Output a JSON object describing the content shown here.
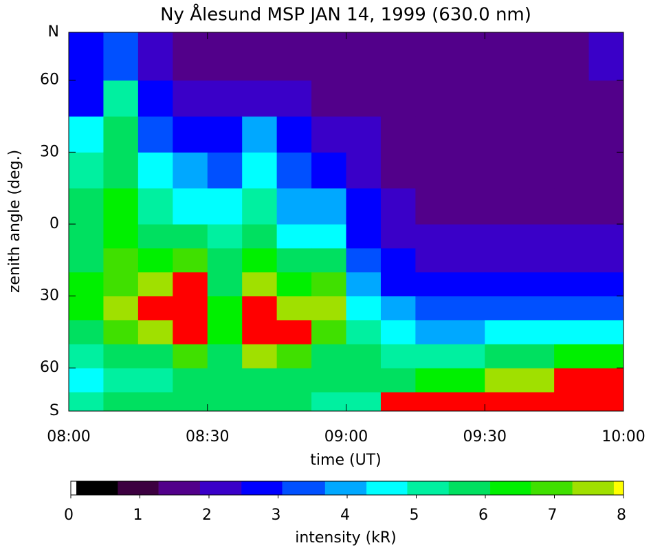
{
  "chart_data": {
    "type": "heatmap",
    "title": "Ny Ålesund MSP JAN 14, 1999 (630.0 nm)",
    "xlabel": "time (UT)",
    "ylabel": "zenith angle (deg.)",
    "xlim": [
      8,
      10
    ],
    "xticks": [
      {
        "value": 8,
        "label": "08:00"
      },
      {
        "value": 8.5,
        "label": "08:30"
      },
      {
        "value": 9,
        "label": "09:00"
      },
      {
        "value": 9.5,
        "label": "09:30"
      },
      {
        "value": 10,
        "label": "10:00"
      }
    ],
    "ylim": [
      -78,
      80
    ],
    "yticks": [
      {
        "value": 80,
        "label": "N"
      },
      {
        "value": 60,
        "label": "60"
      },
      {
        "value": 30,
        "label": "30"
      },
      {
        "value": 0,
        "label": "0"
      },
      {
        "value": -30,
        "label": "30"
      },
      {
        "value": -60,
        "label": "60"
      },
      {
        "value": -78,
        "label": "S"
      }
    ],
    "x_edges": [
      8,
      8.125,
      8.25,
      8.375,
      8.5,
      8.625,
      8.75,
      8.875,
      9,
      9.125,
      9.25,
      9.375,
      9.5,
      9.625,
      9.75,
      9.875,
      10
    ],
    "y_edges": [
      -78,
      -70,
      -60,
      -50,
      -40,
      -30,
      -20,
      -10,
      0,
      15,
      30,
      45,
      60,
      80
    ],
    "z": [
      [
        5,
        4.5,
        5,
        6,
        6.5,
        6.5,
        6,
        6,
        5.5,
        5,
        4.5,
        3,
        2.5
      ],
      [
        5.5,
        5,
        5.5,
        7,
        7.5,
        7,
        7,
        6.5,
        6.5,
        6,
        6,
        5,
        3.5
      ],
      [
        5.5,
        5,
        6,
        7.5,
        8,
        7.5,
        6.5,
        5.5,
        5,
        4.5,
        3.5,
        2.5,
        2
      ],
      [
        5.5,
        5.5,
        7,
        8.5,
        8.5,
        8.2,
        7,
        5.5,
        4.5,
        3.8,
        3,
        2.2,
        1.8
      ],
      [
        5.5,
        5.5,
        6,
        6.5,
        6.5,
        6,
        5.5,
        5,
        4.5,
        3.5,
        2.8,
        2,
        1.8
      ],
      [
        5.5,
        6,
        7.5,
        8.5,
        8.2,
        7.5,
        6.5,
        5.5,
        5,
        4.5,
        3.8,
        2.2,
        1.8
      ],
      [
        5.5,
        6,
        7,
        8.5,
        7.5,
        6.5,
        5.5,
        4.8,
        4,
        3.2,
        2.5,
        1.9,
        1.6
      ],
      [
        5,
        5.5,
        6,
        7,
        7.5,
        7,
        6,
        4.8,
        4,
        3,
        2.2,
        1.8,
        1.6
      ],
      [
        5,
        5.5,
        5.5,
        5.2,
        4.8,
        4,
        3.5,
        3,
        2.6,
        2.2,
        1.9,
        1.7,
        1.6
      ],
      [
        8.5,
        6,
        5,
        4.5,
        3.8,
        3,
        2.5,
        2.2,
        2,
        1.8,
        1.7,
        1.6,
        1.6
      ],
      [
        8.5,
        6.5,
        5,
        4.2,
        3.5,
        2.8,
        2.3,
        2,
        1.8,
        1.7,
        1.6,
        1.6,
        1.6
      ],
      [
        8.5,
        6.5,
        5.2,
        4.2,
        3.5,
        2.8,
        2.2,
        1.9,
        1.7,
        1.6,
        1.6,
        1.6,
        1.6
      ],
      [
        8.5,
        7.5,
        5.5,
        4.3,
        3.5,
        2.8,
        2.2,
        1.9,
        1.7,
        1.6,
        1.6,
        1.6,
        1.6
      ],
      [
        8.5,
        7.5,
        6,
        4.5,
        3.5,
        2.8,
        2.2,
        1.9,
        1.7,
        1.6,
        1.6,
        1.6,
        1.7
      ],
      [
        8.5,
        8.5,
        6.5,
        4.5,
        3.5,
        2.8,
        2.2,
        1.9,
        1.7,
        1.6,
        1.6,
        1.7,
        1.8
      ],
      [
        8.5,
        8,
        6.5,
        4.8,
        3.5,
        2.8,
        2.3,
        2,
        1.8,
        1.7,
        1.7,
        1.8,
        2
      ]
    ],
    "colorbar": {
      "label": "intensity (kR)",
      "lim": [
        0,
        8
      ],
      "ticks": [
        0,
        1,
        2,
        3,
        4,
        5,
        6,
        7,
        8
      ],
      "levels": [
        0,
        0.08,
        0.68,
        1.27,
        1.87,
        2.47,
        3.06,
        3.68,
        4.28,
        4.87,
        5.47,
        6.07,
        6.66,
        7.26,
        7.86,
        8
      ],
      "colors": [
        "#ffffff",
        "#000000",
        "#3c0040",
        "#52008a",
        "#3a00c8",
        "#0000ff",
        "#0050ff",
        "#00a8ff",
        "#00ffff",
        "#00f0a0",
        "#00e060",
        "#00f000",
        "#40e000",
        "#a0e000",
        "#ffff00"
      ],
      "over_color": "#ff0000"
    }
  }
}
